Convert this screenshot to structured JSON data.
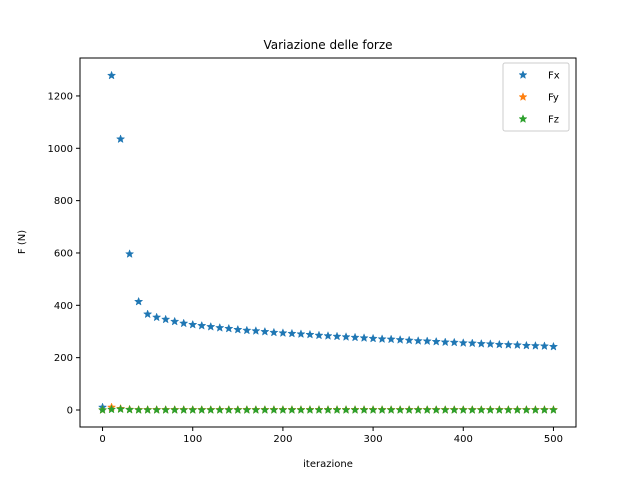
{
  "chart_data": {
    "type": "scatter",
    "title": "Variazione delle forze",
    "xlabel": "iterazione",
    "ylabel": "F (N)",
    "xlim": [
      -25,
      525
    ],
    "ylim": [
      -65,
      1345
    ],
    "xticks": [
      0,
      100,
      200,
      300,
      400,
      500
    ],
    "yticks": [
      0,
      200,
      400,
      600,
      800,
      1000,
      1200
    ],
    "grid": false,
    "legend_position": "top-right",
    "marker": "star",
    "x": [
      0,
      10,
      20,
      30,
      40,
      50,
      60,
      70,
      80,
      90,
      100,
      110,
      120,
      130,
      140,
      150,
      160,
      170,
      180,
      190,
      200,
      210,
      220,
      230,
      240,
      250,
      260,
      270,
      280,
      290,
      300,
      310,
      320,
      330,
      340,
      350,
      360,
      370,
      380,
      390,
      400,
      410,
      420,
      430,
      440,
      450,
      460,
      470,
      480,
      490,
      500
    ],
    "series": [
      {
        "name": "Fx",
        "color": "#1f77b4",
        "values": [
          10,
          1278,
          1035,
          596,
          414,
          366,
          354,
          346,
          338,
          331,
          326,
          322,
          318,
          314,
          311,
          307,
          304,
          302,
          299,
          296,
          294,
          292,
          290,
          288,
          285,
          283,
          281,
          279,
          277,
          275,
          273,
          271,
          270,
          268,
          266,
          264,
          263,
          261,
          259,
          258,
          256,
          255,
          253,
          252,
          250,
          249,
          248,
          246,
          245,
          244,
          242
        ]
      },
      {
        "name": "Fy",
        "color": "#ff7f0e",
        "values": [
          0,
          10,
          5,
          2,
          1,
          1,
          1,
          1,
          1,
          1,
          1,
          1,
          1,
          1,
          1,
          1,
          1,
          1,
          1,
          1,
          1,
          1,
          1,
          1,
          1,
          1,
          1,
          1,
          1,
          1,
          1,
          1,
          1,
          1,
          1,
          1,
          1,
          1,
          1,
          1,
          1,
          1,
          1,
          1,
          1,
          1,
          1,
          1,
          1,
          1,
          1
        ]
      },
      {
        "name": "Fz",
        "color": "#2ca02c",
        "values": [
          0,
          2,
          3,
          1,
          0,
          0,
          0,
          0,
          0,
          0,
          0,
          0,
          0,
          0,
          0,
          0,
          0,
          0,
          0,
          0,
          0,
          0,
          0,
          0,
          0,
          0,
          0,
          0,
          0,
          0,
          0,
          0,
          0,
          0,
          0,
          0,
          0,
          0,
          0,
          0,
          0,
          0,
          0,
          0,
          0,
          0,
          0,
          0,
          0,
          0,
          0
        ]
      }
    ]
  }
}
